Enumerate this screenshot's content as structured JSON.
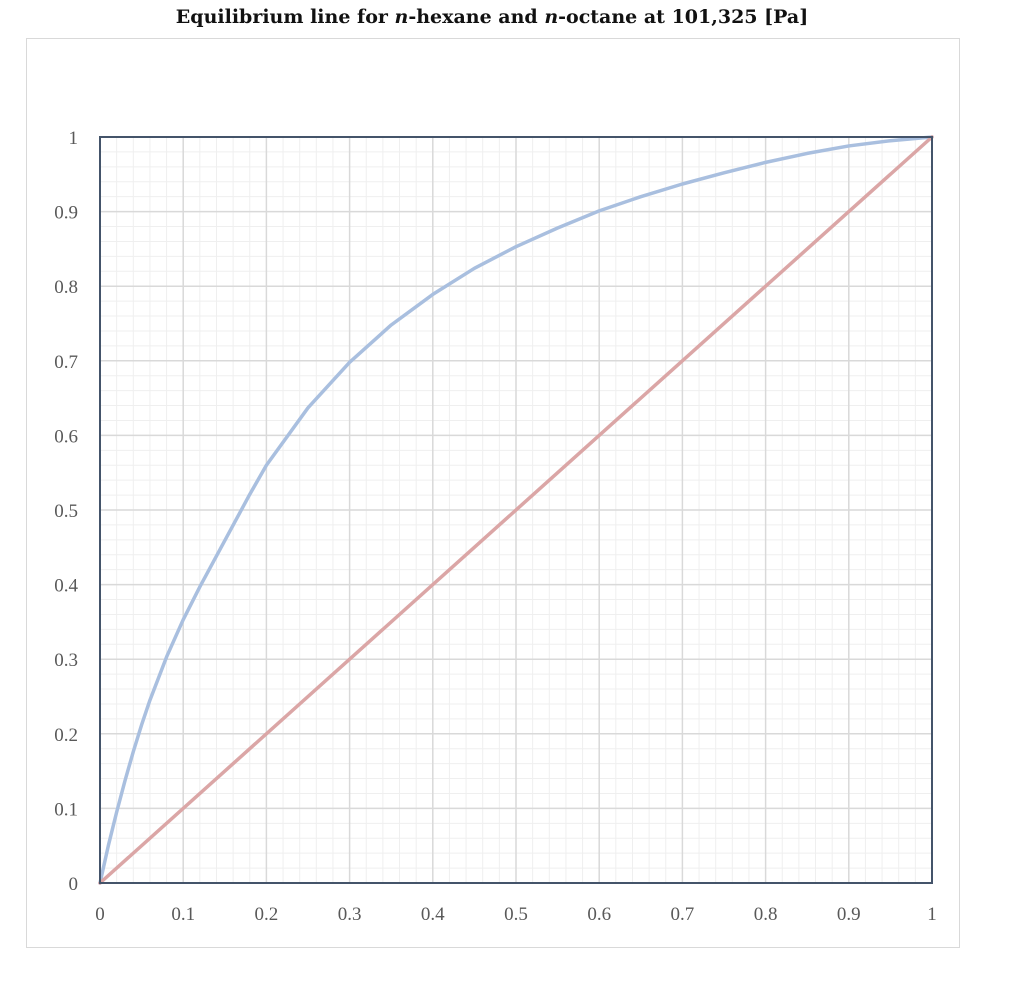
{
  "chart_data": {
    "type": "line",
    "title": {
      "prefix": "Equilibrium line for ",
      "italic1": "n",
      "mid": "-hexane and ",
      "italic2": "n",
      "suffix": "-octane at 101,325 [Pa]"
    },
    "xlabel": "",
    "ylabel": "",
    "xlim": [
      0,
      1
    ],
    "ylim": [
      0,
      1
    ],
    "grid": true,
    "minor_grid": true,
    "x_ticks": [
      "0",
      "0.1",
      "0.2",
      "0.3",
      "0.4",
      "0.5",
      "0.6",
      "0.7",
      "0.8",
      "0.9",
      "1"
    ],
    "y_ticks": [
      "0",
      "0.1",
      "0.2",
      "0.3",
      "0.4",
      "0.5",
      "0.6",
      "0.7",
      "0.8",
      "0.9",
      "1"
    ],
    "series": [
      {
        "color": "#a9bfdf",
        "x": [
          0,
          0.01,
          0.02,
          0.03,
          0.04,
          0.05,
          0.06,
          0.08,
          0.1,
          0.12,
          0.15,
          0.18,
          0.2,
          0.25,
          0.3,
          0.35,
          0.4,
          0.45,
          0.5,
          0.55,
          0.6,
          0.65,
          0.7,
          0.75,
          0.8,
          0.85,
          0.9,
          0.95,
          1.0
        ],
        "y": [
          0,
          0.05,
          0.095,
          0.137,
          0.176,
          0.212,
          0.245,
          0.303,
          0.353,
          0.397,
          0.459,
          0.521,
          0.56,
          0.637,
          0.698,
          0.748,
          0.789,
          0.824,
          0.853,
          0.878,
          0.901,
          0.92,
          0.937,
          0.952,
          0.966,
          0.978,
          0.988,
          0.995,
          1.0
        ]
      },
      {
        "color": "#dba6a6",
        "x": [
          0,
          1
        ],
        "y": [
          0,
          1
        ]
      }
    ],
    "colors": {
      "axis": "#44546a",
      "major_grid": "#d9d9d9",
      "minor_grid": "#efefef",
      "tick_text": "#595959"
    }
  }
}
